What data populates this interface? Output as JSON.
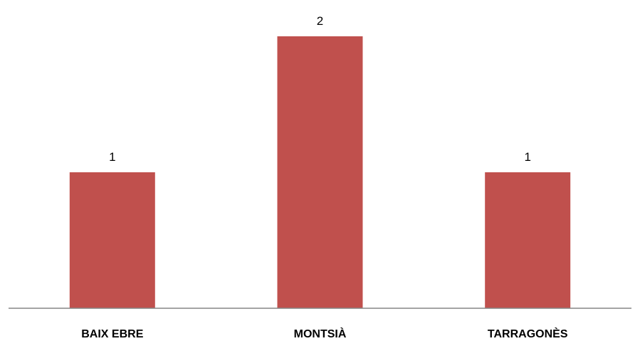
{
  "chart_data": {
    "type": "bar",
    "categories": [
      "BAIX EBRE",
      "MONTSIÀ",
      "TARRAGONÈS"
    ],
    "values": [
      1,
      2,
      1
    ],
    "data_labels": [
      "1",
      "2",
      "1"
    ],
    "ylim": [
      0,
      2.2
    ],
    "grid": false,
    "legend": "none",
    "bar_color": "#c0504d",
    "axis_color": "#868686"
  }
}
